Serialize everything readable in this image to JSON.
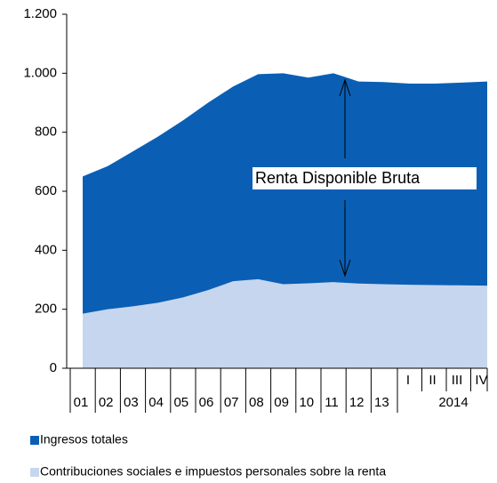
{
  "chart_data": {
    "type": "area",
    "categories": [
      "01",
      "02",
      "03",
      "04",
      "05",
      "06",
      "07",
      "08",
      "09",
      "10",
      "11",
      "12",
      "13",
      "I",
      "II",
      "III",
      "IV"
    ],
    "x_group_label": "2014",
    "series": [
      {
        "name": "Ingresos totales",
        "color": "#0a5fb4",
        "values": [
          650,
          685,
          735,
          785,
          840,
          900,
          955,
          997,
          1000,
          985,
          1000,
          972,
          970,
          965,
          965,
          968,
          972
        ]
      },
      {
        "name": "Contribuciones sociales e impuestos personales sobre la renta",
        "color": "#c6d6ef",
        "values": [
          185,
          200,
          210,
          222,
          240,
          265,
          295,
          302,
          285,
          288,
          292,
          287,
          285,
          283,
          282,
          281,
          280
        ]
      }
    ],
    "annotation": "Renta Disponible Bruta",
    "ylim": [
      0,
      1200
    ],
    "yticks": [
      0,
      200,
      400,
      600,
      800,
      {
        "value": 1000,
        "label": "1.000"
      },
      {
        "value": 1200,
        "label": "1.200"
      }
    ],
    "grid": false
  }
}
